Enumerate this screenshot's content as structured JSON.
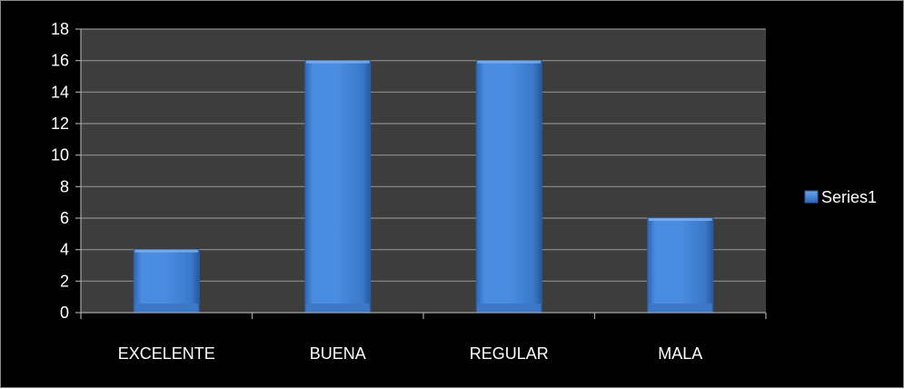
{
  "colors": {
    "background": "#000000",
    "plot_area": "#3d3d3d",
    "gridline": "#8c8c8c",
    "axis": "#a6a6a6",
    "bar_light": "#5b9ae8",
    "bar_main": "#3f7fd0",
    "bar_dark": "#2a5fa6",
    "text": "#ffffff"
  },
  "chart_data": {
    "type": "bar",
    "categories": [
      "EXCELENTE",
      "BUENA",
      "REGULAR",
      "MALA"
    ],
    "series": [
      {
        "name": "Series1",
        "values": [
          4,
          16,
          16,
          6
        ]
      }
    ],
    "ylim": [
      0,
      18
    ],
    "ytick_step": 2,
    "grid": true,
    "legend_position": "right",
    "title": "",
    "xlabel": "",
    "ylabel": ""
  }
}
